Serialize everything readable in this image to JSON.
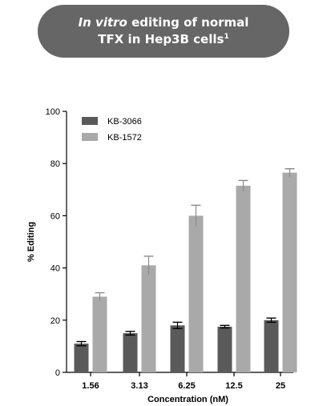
{
  "banner": {
    "title_italic": "In vitro",
    "title_rest": "editing of normal",
    "title_line2": "TFX in Hep3B cells",
    "title_superscript": "1"
  },
  "chart_data": {
    "type": "bar",
    "title": "In vitro editing of normal TFX in Hep3B cells",
    "xlabel": "Concentration (nM)",
    "ylabel": "% Editing",
    "categories": [
      "1.56",
      "3.13",
      "6.25",
      "12.5",
      "25"
    ],
    "ylim": [
      0,
      100
    ],
    "yticks": [
      0,
      20,
      40,
      60,
      80,
      100
    ],
    "grid": false,
    "legend_position": "top-left",
    "error_bars": true,
    "series": [
      {
        "name": "KB-3066",
        "color": "#5a5a5a",
        "values": [
          11,
          15,
          18,
          17.5,
          20
        ],
        "errors": [
          0.8,
          0.7,
          1.2,
          0.5,
          0.8
        ]
      },
      {
        "name": "KB-1572",
        "color": "#a9a9a9",
        "values": [
          29,
          41,
          60,
          71.5,
          76.5
        ],
        "errors": [
          1.5,
          3.5,
          4.0,
          2.0,
          1.5
        ]
      }
    ]
  }
}
